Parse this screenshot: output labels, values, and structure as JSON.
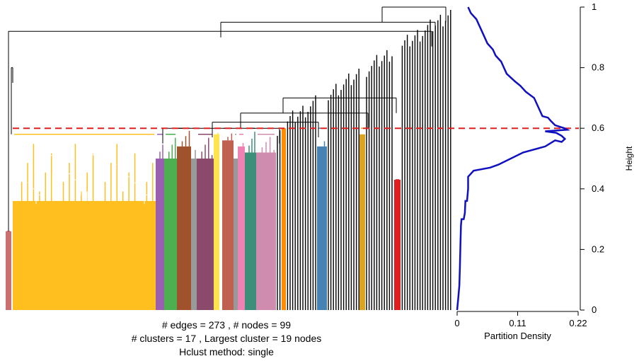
{
  "chart_data": [
    {
      "type": "dendrogram",
      "cut_height": 0.6,
      "edges": 273,
      "nodes": 99,
      "clusters": 17,
      "largest_cluster": 19,
      "hclust_method": "single",
      "cut_line_color": "#e02020",
      "cluster_colors": [
        "#c97070",
        "#ffbf1f",
        "#9a5fb0",
        "#4caf50",
        "#a0522d",
        "#999999",
        "#8b4a6b",
        "#ffe44d",
        "#c06050",
        "#3d8f7a",
        "#ee82b4",
        "#d08caf",
        "#ff8c00",
        "#4682b4",
        "#d9a520",
        "#e02020"
      ],
      "stats": {
        "edges_line": "# edges =  273 ,    # nodes =  99",
        "clusters_line": "# clusters =  17 ,   Largest cluster =  19  nodes",
        "method_line": "Hclust method:  single"
      }
    },
    {
      "type": "line",
      "title": "",
      "xlabel": "Partition Density",
      "ylabel": "Height",
      "xlim": [
        0,
        0.22
      ],
      "ylim": [
        0,
        1
      ],
      "x_ticks": [
        "0",
        "0.11",
        "0.22"
      ],
      "y_ticks": [
        "0",
        "0.2",
        "0.4",
        "0.6",
        "0.8",
        "1"
      ],
      "line_color": "#1010c0",
      "series": [
        {
          "points": [
            [
              0.0,
              0.0
            ],
            [
              0.002,
              0.04
            ],
            [
              0.004,
              0.08
            ],
            [
              0.005,
              0.14
            ],
            [
              0.006,
              0.22
            ],
            [
              0.007,
              0.28
            ],
            [
              0.008,
              0.3
            ],
            [
              0.012,
              0.3
            ],
            [
              0.014,
              0.32
            ],
            [
              0.015,
              0.36
            ],
            [
              0.018,
              0.36
            ],
            [
              0.02,
              0.4
            ],
            [
              0.02,
              0.44
            ],
            [
              0.03,
              0.46
            ],
            [
              0.06,
              0.47
            ],
            [
              0.075,
              0.48
            ],
            [
              0.12,
              0.52
            ],
            [
              0.16,
              0.54
            ],
            [
              0.178,
              0.56
            ],
            [
              0.19,
              0.555
            ],
            [
              0.196,
              0.565
            ],
            [
              0.19,
              0.575
            ],
            [
              0.18,
              0.585
            ],
            [
              0.16,
              0.59
            ],
            [
              0.2,
              0.595
            ],
            [
              0.195,
              0.6
            ],
            [
              0.178,
              0.61
            ],
            [
              0.17,
              0.625
            ],
            [
              0.165,
              0.635
            ],
            [
              0.155,
              0.64
            ],
            [
              0.15,
              0.66
            ],
            [
              0.145,
              0.68
            ],
            [
              0.14,
              0.7
            ],
            [
              0.125,
              0.72
            ],
            [
              0.115,
              0.74
            ],
            [
              0.105,
              0.755
            ],
            [
              0.09,
              0.78
            ],
            [
              0.085,
              0.8
            ],
            [
              0.08,
              0.82
            ],
            [
              0.07,
              0.84
            ],
            [
              0.065,
              0.86
            ],
            [
              0.055,
              0.88
            ],
            [
              0.05,
              0.9
            ],
            [
              0.045,
              0.92
            ],
            [
              0.04,
              0.94
            ],
            [
              0.035,
              0.96
            ],
            [
              0.025,
              0.98
            ],
            [
              0.02,
              1.0
            ]
          ]
        }
      ]
    }
  ]
}
